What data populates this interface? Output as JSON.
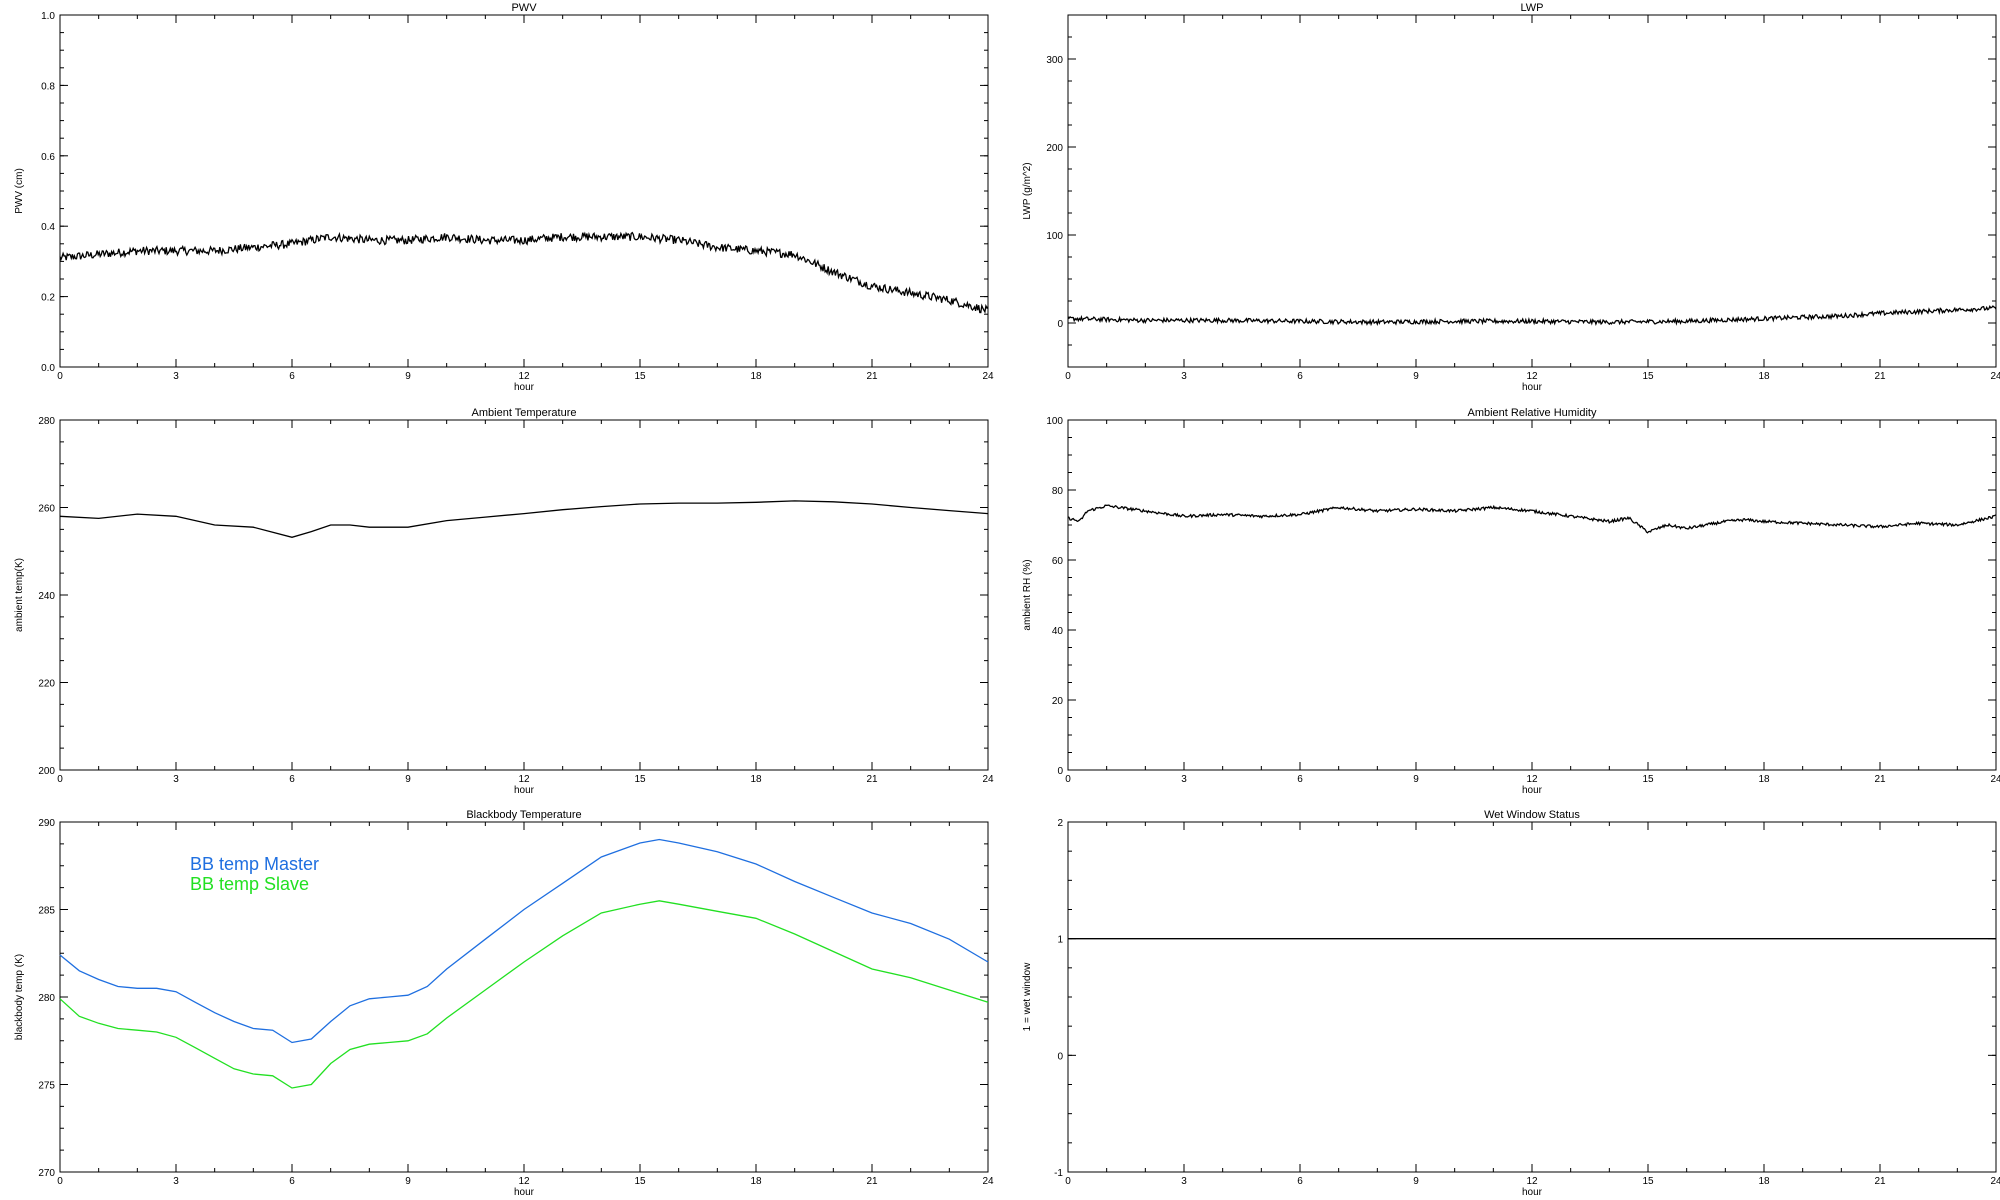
{
  "chart_data": [
    {
      "type": "line",
      "title": "PWV",
      "xlabel": "hour",
      "ylabel": "PWV (cm)",
      "xlim": [
        0,
        24
      ],
      "ylim": [
        0.0,
        1.0
      ],
      "xticks": [
        "0",
        "3",
        "6",
        "9",
        "12",
        "15",
        "18",
        "21",
        "24"
      ],
      "yticks": [
        "0.0",
        "0.2",
        "0.4",
        "0.6",
        "0.8",
        "1.0"
      ],
      "grid": false,
      "series": [
        {
          "color": "#000000",
          "noise": 0.012,
          "x": [
            0,
            1,
            2,
            3,
            4,
            5,
            6,
            7,
            8,
            9,
            10,
            11,
            12,
            13,
            14,
            15,
            16,
            17,
            18,
            19,
            20,
            21,
            22,
            23,
            24
          ],
          "y": [
            0.31,
            0.32,
            0.33,
            0.33,
            0.33,
            0.34,
            0.35,
            0.37,
            0.36,
            0.36,
            0.37,
            0.36,
            0.36,
            0.37,
            0.37,
            0.37,
            0.36,
            0.34,
            0.33,
            0.32,
            0.27,
            0.23,
            0.21,
            0.19,
            0.16
          ]
        }
      ]
    },
    {
      "type": "line",
      "title": "LWP",
      "xlabel": "hour",
      "ylabel": "LWP (g/m^2)",
      "xlim": [
        0,
        24
      ],
      "ylim": [
        -50,
        350
      ],
      "xticks": [
        "0",
        "3",
        "6",
        "9",
        "12",
        "15",
        "18",
        "21",
        "24"
      ],
      "yticks": [
        "0",
        "100",
        "200",
        "300"
      ],
      "grid": false,
      "series": [
        {
          "color": "#000000",
          "noise": 2.5,
          "x": [
            0,
            2,
            4,
            6,
            8,
            10,
            12,
            14,
            16,
            18,
            20,
            21,
            22,
            23,
            24
          ],
          "y": [
            5,
            3,
            3,
            2,
            1,
            2,
            2,
            1,
            2,
            5,
            8,
            11,
            13,
            15,
            17
          ]
        }
      ]
    },
    {
      "type": "line",
      "title": "Ambient Temperature",
      "xlabel": "hour",
      "ylabel": "ambient temp(K)",
      "xlim": [
        0,
        24
      ],
      "ylim": [
        200,
        280
      ],
      "xticks": [
        "0",
        "3",
        "6",
        "9",
        "12",
        "15",
        "18",
        "21",
        "24"
      ],
      "yticks": [
        "200",
        "220",
        "240",
        "260",
        "280"
      ],
      "grid": false,
      "series": [
        {
          "color": "#000000",
          "noise": 0.0,
          "x": [
            0,
            1,
            2,
            3,
            4,
            5,
            6,
            6.5,
            7,
            7.5,
            8,
            9,
            10,
            11,
            12,
            13,
            14,
            15,
            16,
            17,
            18,
            19,
            20,
            21,
            22,
            23,
            24
          ],
          "y": [
            258,
            257.5,
            258.5,
            258,
            256,
            255.5,
            253.2,
            254.5,
            256,
            256,
            255.5,
            255.5,
            257,
            257.8,
            258.6,
            259.5,
            260.2,
            260.8,
            261,
            261,
            261.2,
            261.5,
            261.3,
            260.8,
            260,
            259.3,
            258.6
          ]
        }
      ]
    },
    {
      "type": "line",
      "title": "Ambient Relative Humidity",
      "xlabel": "hour",
      "ylabel": "ambient RH (%)",
      "xlim": [
        0,
        24
      ],
      "ylim": [
        0,
        100
      ],
      "xticks": [
        "0",
        "3",
        "6",
        "9",
        "12",
        "15",
        "18",
        "21",
        "24"
      ],
      "yticks": [
        "0",
        "20",
        "40",
        "60",
        "80",
        "100"
      ],
      "grid": false,
      "series": [
        {
          "color": "#000000",
          "noise": 0.4,
          "x": [
            0,
            0.3,
            0.5,
            1,
            2,
            3,
            4,
            5,
            6,
            7,
            8,
            9,
            10,
            11,
            12,
            13,
            14,
            14.5,
            15,
            15.5,
            16,
            17,
            17.5,
            18,
            19,
            20,
            21,
            22,
            23,
            24
          ],
          "y": [
            72,
            71,
            74,
            75.5,
            74,
            72.5,
            73,
            72.5,
            73,
            75,
            74,
            74.5,
            74,
            75,
            74,
            72.5,
            71,
            72,
            68,
            70,
            69,
            71,
            71.5,
            71,
            70.5,
            70,
            69.5,
            70.5,
            70,
            72.5
          ]
        }
      ]
    },
    {
      "type": "line",
      "title": "Blackbody Temperature",
      "xlabel": "hour",
      "ylabel": "blackbody temp (K)",
      "xlim": [
        0,
        24
      ],
      "ylim": [
        270,
        290
      ],
      "xticks": [
        "0",
        "3",
        "6",
        "9",
        "12",
        "15",
        "18",
        "21",
        "24"
      ],
      "yticks": [
        "270",
        "275",
        "280",
        "285",
        "290"
      ],
      "grid": false,
      "legend": "top-left",
      "series": [
        {
          "name": "BB temp Master",
          "color": "#1f6fe0",
          "noise": 0.0,
          "x": [
            0,
            0.5,
            1,
            1.5,
            2,
            2.5,
            3,
            3.5,
            4,
            4.5,
            5,
            5.5,
            6,
            6.5,
            7,
            7.5,
            8,
            8.5,
            9,
            9.5,
            10,
            11,
            12,
            13,
            14,
            15,
            15.5,
            16,
            17,
            18,
            19,
            20,
            21,
            22,
            23,
            24
          ],
          "y": [
            282.4,
            281.5,
            281,
            280.6,
            280.5,
            280.5,
            280.3,
            279.7,
            279.1,
            278.6,
            278.2,
            278.1,
            277.4,
            277.6,
            278.6,
            279.5,
            279.9,
            280,
            280.1,
            280.6,
            281.6,
            283.3,
            285,
            286.5,
            288,
            288.8,
            289,
            288.8,
            288.3,
            287.6,
            286.6,
            285.7,
            284.8,
            284.2,
            283.3,
            282
          ]
        }
      ]
    },
    {
      "type": "line",
      "title": "Wet Window Status",
      "xlabel": "hour",
      "ylabel": "1 = wet window",
      "xlim": [
        0,
        24
      ],
      "ylim": [
        -1,
        2
      ],
      "xticks": [
        "0",
        "3",
        "6",
        "9",
        "12",
        "15",
        "18",
        "21",
        "24"
      ],
      "yticks": [
        "-1",
        "0",
        "1",
        "2"
      ],
      "grid": false,
      "series": [
        {
          "color": "#000000",
          "noise": 0.0,
          "x": [
            0,
            24
          ],
          "y": [
            1,
            1
          ]
        }
      ]
    }
  ],
  "bb_slave": {
    "name": "BB temp Slave",
    "color": "#22e022",
    "x": [
      0,
      0.5,
      1,
      1.5,
      2,
      2.5,
      3,
      3.5,
      4,
      4.5,
      5,
      5.5,
      6,
      6.5,
      7,
      7.5,
      8,
      8.5,
      9,
      9.5,
      10,
      11,
      12,
      13,
      14,
      15,
      15.5,
      16,
      17,
      18,
      19,
      20,
      21,
      22,
      23,
      24
    ],
    "y": [
      279.9,
      278.9,
      278.5,
      278.2,
      278.1,
      278,
      277.7,
      277.1,
      276.5,
      275.9,
      275.6,
      275.5,
      274.8,
      275,
      276.2,
      277,
      277.3,
      277.4,
      277.5,
      277.9,
      278.8,
      280.4,
      282,
      283.5,
      284.8,
      285.3,
      285.5,
      285.3,
      284.9,
      284.5,
      283.6,
      282.6,
      281.6,
      281.1,
      280.4,
      279.7
    ]
  }
}
